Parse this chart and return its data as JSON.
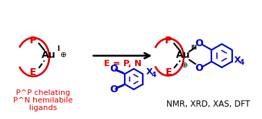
{
  "bg_color": "#ffffff",
  "red": "#dd0000",
  "blue": "#0000cc",
  "black": "#000000",
  "label_bottom1": "P^P chelating",
  "label_bottom2": "P^N hemilabile",
  "label_bottom3": "ligands",
  "label_eq": "E = P, N",
  "label_nmr": "NMR, XRD, XAS, DFT"
}
